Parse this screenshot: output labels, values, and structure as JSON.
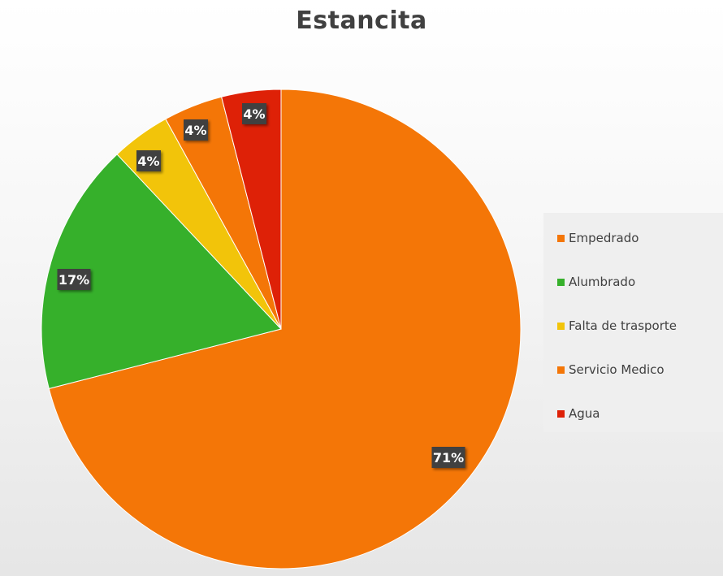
{
  "chart_data": {
    "type": "pie",
    "title": "Estancita",
    "categories": [
      "Empedrado",
      "Alumbrado",
      "Falta de trasporte",
      "Servicio Medico",
      "Agua"
    ],
    "values": [
      71,
      17,
      4,
      4,
      4
    ],
    "data_labels": [
      "71%",
      "17%",
      "4%",
      "4%",
      "4%"
    ],
    "colors": [
      "#F47607",
      "#36B02B",
      "#F2C40A",
      "#F47607",
      "#DE2107"
    ],
    "legend_position": "right",
    "start_angle_deg": 0,
    "direction": "clockwise"
  }
}
